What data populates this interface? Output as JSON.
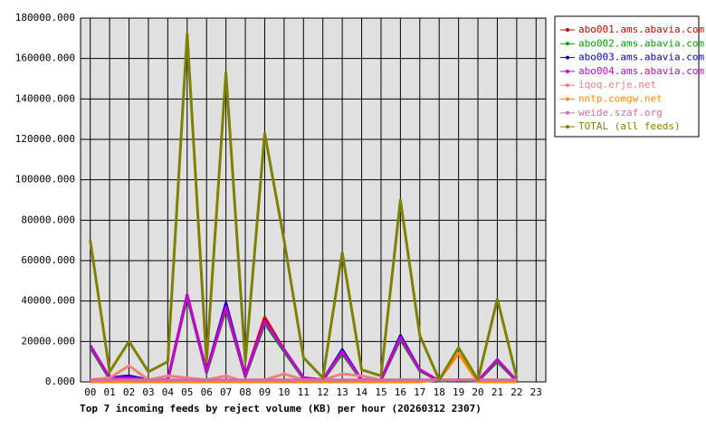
{
  "chart_data": {
    "type": "line",
    "title": "Top 7 incoming feeds by reject volume (KB) per hour (20260312 2307)",
    "categories": [
      "00",
      "01",
      "02",
      "03",
      "04",
      "05",
      "06",
      "07",
      "08",
      "09",
      "10",
      "11",
      "12",
      "13",
      "14",
      "15",
      "16",
      "17",
      "18",
      "19",
      "20",
      "21",
      "22",
      "23"
    ],
    "ylim": [
      0,
      180000
    ],
    "yticks": [
      {
        "value": 0,
        "label": "0.000"
      },
      {
        "value": 20000,
        "label": "20000.000"
      },
      {
        "value": 40000,
        "label": "40000.000"
      },
      {
        "value": 60000,
        "label": "60000.000"
      },
      {
        "value": 80000,
        "label": "80000.000"
      },
      {
        "value": 100000,
        "label": "100000.000"
      },
      {
        "value": 120000,
        "label": "120000.000"
      },
      {
        "value": 140000,
        "label": "140000.000"
      },
      {
        "value": 160000,
        "label": "160000.000"
      },
      {
        "value": 180000,
        "label": "180000.000"
      }
    ],
    "grid": true,
    "legend": "top-right",
    "series": [
      {
        "name": "abo001.ams.abavia.com",
        "color": "#cc0000",
        "values": [
          18000,
          2000,
          2000,
          1000,
          1000,
          43000,
          5000,
          38000,
          3000,
          32000,
          16000,
          2000,
          1000,
          15000,
          1000,
          1000,
          22000,
          6000,
          500,
          1000,
          500,
          11000,
          500,
          null
        ]
      },
      {
        "name": "abo002.ams.abavia.com",
        "color": "#00a000",
        "values": [
          17000,
          1500,
          1500,
          800,
          800,
          42000,
          4500,
          36000,
          2500,
          29000,
          15000,
          1500,
          800,
          14000,
          800,
          800,
          21000,
          5500,
          400,
          800,
          400,
          10000,
          400,
          null
        ]
      },
      {
        "name": "abo003.ams.abavia.com",
        "color": "#0000cc",
        "values": [
          18000,
          2000,
          3000,
          1000,
          1000,
          43000,
          5000,
          39000,
          3000,
          30000,
          16000,
          2000,
          1000,
          16000,
          1000,
          1000,
          23000,
          6000,
          500,
          1000,
          500,
          11000,
          500,
          null
        ]
      },
      {
        "name": "abo004.ams.abavia.com",
        "color": "#cc00cc",
        "values": [
          18000,
          2000,
          2000,
          1000,
          1000,
          43000,
          5000,
          37000,
          3000,
          30000,
          16000,
          2000,
          1000,
          15000,
          1000,
          1000,
          22000,
          6000,
          500,
          1000,
          500,
          11000,
          500,
          null
        ]
      },
      {
        "name": "iqoq.erje.net",
        "color": "#f08080",
        "values": [
          1000,
          2000,
          8000,
          1000,
          3000,
          2000,
          1000,
          3000,
          0,
          1000,
          4000,
          1000,
          1000,
          4000,
          3000,
          1000,
          1000,
          1000,
          1000,
          1000,
          1000,
          1000,
          1000,
          null
        ]
      },
      {
        "name": "nntp.comgw.net",
        "color": "#ff8800",
        "values": [
          0,
          0,
          0,
          0,
          0,
          0,
          0,
          0,
          0,
          0,
          0,
          0,
          0,
          0,
          0,
          0,
          0,
          0,
          1000,
          14000,
          0,
          0,
          0,
          null
        ]
      },
      {
        "name": "weide.szaf.org",
        "color": "#d070a0",
        "values": [
          1000,
          1000,
          1000,
          1000,
          1000,
          1000,
          1000,
          1000,
          1000,
          1000,
          1000,
          1000,
          1000,
          1000,
          1000,
          1000,
          1000,
          1000,
          1000,
          1000,
          1000,
          1000,
          1000,
          null
        ]
      },
      {
        "name": "TOTAL (all feeds)",
        "color": "#808000",
        "values": [
          70000,
          5000,
          20000,
          5000,
          10000,
          172000,
          10000,
          153000,
          10000,
          123000,
          70000,
          12000,
          2000,
          64000,
          6000,
          3000,
          90000,
          23000,
          1000,
          17000,
          1000,
          41000,
          2000,
          null
        ]
      }
    ]
  }
}
